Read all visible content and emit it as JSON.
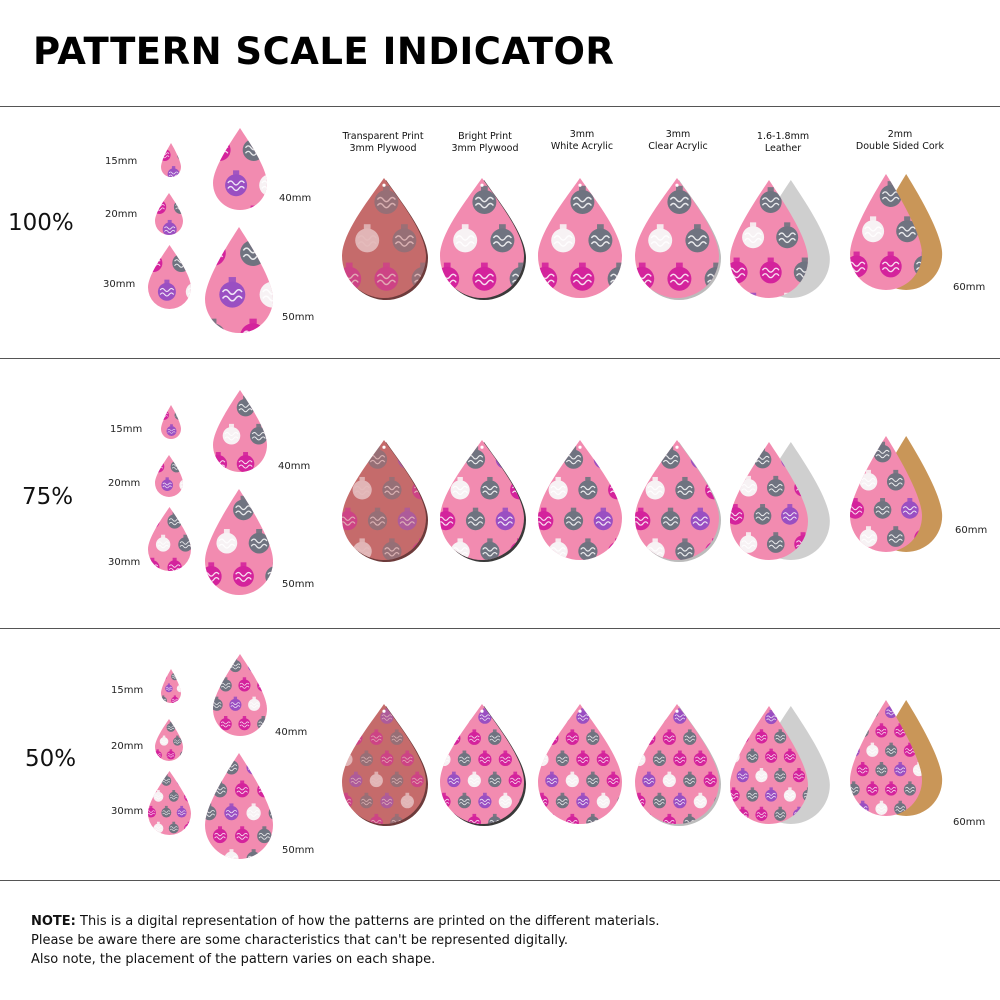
{
  "title": "PATTERN SCALE INDICATOR",
  "colors": {
    "pink": "#f28bb0",
    "magenta": "#d4239c",
    "purple": "#9a4fc2",
    "grey": "#6f7380",
    "white": "#f7f2f4",
    "plywood": "#c56b6b",
    "cork": "#c99658",
    "suede": "#cfcfcf"
  },
  "headers": [
    {
      "line1": "Transparent Print",
      "line2": "3mm Plywood"
    },
    {
      "line1": "Bright Print",
      "line2": "3mm Plywood"
    },
    {
      "line1": "3mm",
      "line2": "White Acrylic"
    },
    {
      "line1": "3mm",
      "line2": "Clear Acrylic"
    },
    {
      "line1": "1.6-1.8mm",
      "line2": "Leather"
    },
    {
      "line1": "2mm",
      "line2": "Double Sided Cork"
    }
  ],
  "sections": [
    {
      "scale": "100%",
      "s15": "15mm",
      "s20": "20mm",
      "s30": "30mm",
      "s40": "40mm",
      "s50": "50mm",
      "s60": "60mm"
    },
    {
      "scale": "75%",
      "s15": "15mm",
      "s20": "20mm",
      "s30": "30mm",
      "s40": "40mm",
      "s50": "50mm",
      "s60": "60mm"
    },
    {
      "scale": "50%",
      "s15": "15mm",
      "s20": "20mm",
      "s30": "30mm",
      "s40": "40mm",
      "s50": "50mm",
      "s60": "60mm"
    }
  ],
  "note": {
    "label": "NOTE:",
    "line1": " This is a digital representation of how the patterns are printed on the different materials.",
    "line2": "Please be aware there are some characteristics that can't be represented digitally.",
    "line3": "Also note, the placement of the pattern varies on each shape."
  }
}
